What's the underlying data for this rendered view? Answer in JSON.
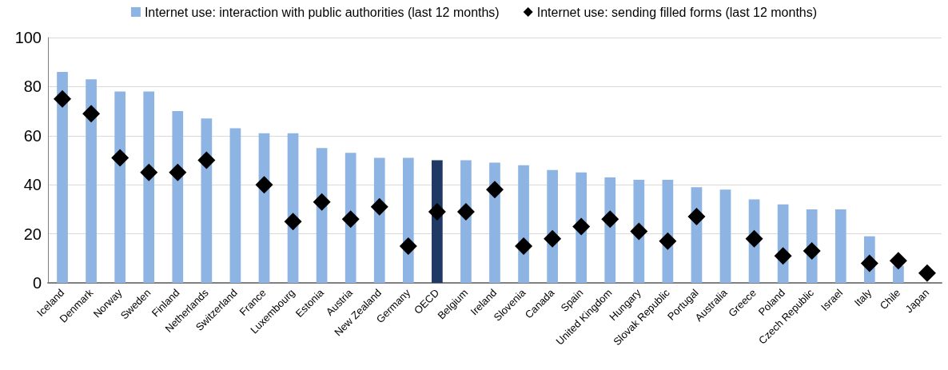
{
  "chart_data": {
    "type": "bar",
    "categories": [
      "Iceland",
      "Denmark",
      "Norway",
      "Sweden",
      "Finland",
      "Netherlands",
      "Switzerland",
      "France",
      "Luxembourg",
      "Estonia",
      "Austria",
      "New Zealand",
      "Germany",
      "OECD",
      "Belgium",
      "Ireland",
      "Slovenia",
      "Canada",
      "Spain",
      "United Kingdom",
      "Hungary",
      "Slovak Republic",
      "Portugal",
      "Australia",
      "Greece",
      "Poland",
      "Czech Republic",
      "Israel",
      "Italy",
      "Chile",
      "Japan"
    ],
    "series": [
      {
        "name": "Internet use: interaction with public authorities (last 12 months)",
        "color": "#8db4e2",
        "colors": [
          "#8db4e2",
          "#8db4e2",
          "#8db4e2",
          "#8db4e2",
          "#8db4e2",
          "#8db4e2",
          "#8db4e2",
          "#8db4e2",
          "#8db4e2",
          "#8db4e2",
          "#8db4e2",
          "#8db4e2",
          "#8db4e2",
          "#1f3864",
          "#8db4e2",
          "#8db4e2",
          "#8db4e2",
          "#8db4e2",
          "#8db4e2",
          "#8db4e2",
          "#8db4e2",
          "#8db4e2",
          "#8db4e2",
          "#8db4e2",
          "#8db4e2",
          "#8db4e2",
          "#8db4e2",
          "#8db4e2",
          "#8db4e2",
          "#8db4e2",
          "#8db4e2"
        ],
        "values": [
          86,
          83,
          78,
          78,
          70,
          67,
          63,
          61,
          61,
          55,
          53,
          51,
          51,
          50,
          50,
          49,
          48,
          46,
          45,
          43,
          42,
          42,
          39,
          38,
          34,
          32,
          30,
          30,
          19,
          7,
          null
        ]
      },
      {
        "type": "scatter",
        "marker": "diamond",
        "name": "Internet use: sending filled forms (last 12 months)",
        "color": "#000000",
        "values": [
          75,
          69,
          51,
          45,
          45,
          50,
          null,
          40,
          25,
          33,
          26,
          31,
          15,
          29,
          29,
          38,
          15,
          18,
          23,
          26,
          21,
          17,
          27,
          null,
          18,
          11,
          13,
          null,
          8,
          9,
          4
        ]
      }
    ],
    "ylim": [
      0,
      100
    ],
    "yticks": [
      0,
      20,
      40,
      60,
      80,
      100
    ],
    "grid": "y",
    "legend": "top"
  }
}
